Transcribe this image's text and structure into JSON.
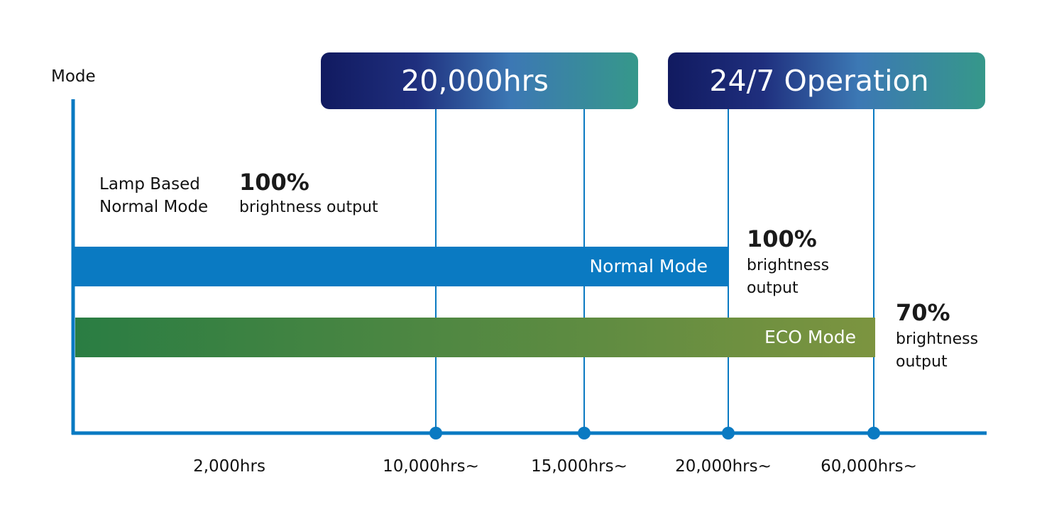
{
  "chart_data": {
    "type": "bar",
    "orientation": "horizontal",
    "ylabel": "Mode",
    "x_ticks": [
      "2,000hrs",
      "10,000hrs~",
      "15,000hrs~",
      "20,000hrs~",
      "60,000hrs~"
    ],
    "banners": [
      {
        "label": "20,000hrs",
        "span_ticks": [
          1,
          2
        ]
      },
      {
        "label": "24/7 Operation",
        "span_ticks": [
          3,
          4
        ]
      }
    ],
    "annotations": {
      "lamp_mode_line1": "Lamp Based",
      "lamp_mode_line2": "Normal Mode",
      "lamp_pct": "100%",
      "lamp_text": "brightness output"
    },
    "series": [
      {
        "name": "Normal Mode",
        "end_tick": 3,
        "hours": 20000,
        "pct": "100%",
        "text_line1": "brightness",
        "text_line2": "output",
        "color": "#0a7ac2"
      },
      {
        "name": "ECO Mode",
        "end_tick": 4,
        "hours": 60000,
        "pct": "70%",
        "text_line1": "brightness",
        "text_line2": "output",
        "color_start": "#2a7d43",
        "color_end": "#7c9440"
      }
    ],
    "colors": {
      "axis": "#0a7ac2",
      "banner_start": "#111a60",
      "banner_mid": "#3c78b4",
      "banner_end": "#36988a"
    }
  }
}
